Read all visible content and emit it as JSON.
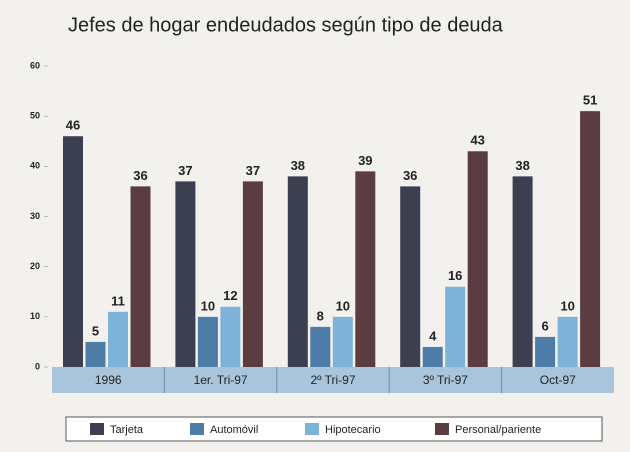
{
  "chart_data": {
    "type": "bar",
    "title": "Jefes de hogar endeudados según tipo de deuda",
    "categories": [
      "1996",
      "1er. Tri-97",
      "2º Tri-97",
      "3º Tri-97",
      "Oct-97"
    ],
    "series": [
      {
        "name": "Tarjeta",
        "color": "#3c3f4f",
        "values": [
          46,
          37,
          38,
          36,
          38
        ]
      },
      {
        "name": "Automóvil",
        "color": "#4d7ca6",
        "values": [
          5,
          10,
          8,
          4,
          6
        ]
      },
      {
        "name": "Hipotecario",
        "color": "#7db2d9",
        "values": [
          11,
          12,
          10,
          16,
          10
        ]
      },
      {
        "name": "Personal/pariente",
        "color": "#5b3c40",
        "values": [
          36,
          37,
          39,
          43,
          51
        ]
      }
    ],
    "ylim": [
      0,
      60
    ],
    "yticks": [
      0,
      10,
      20,
      30,
      40,
      50,
      60
    ]
  }
}
